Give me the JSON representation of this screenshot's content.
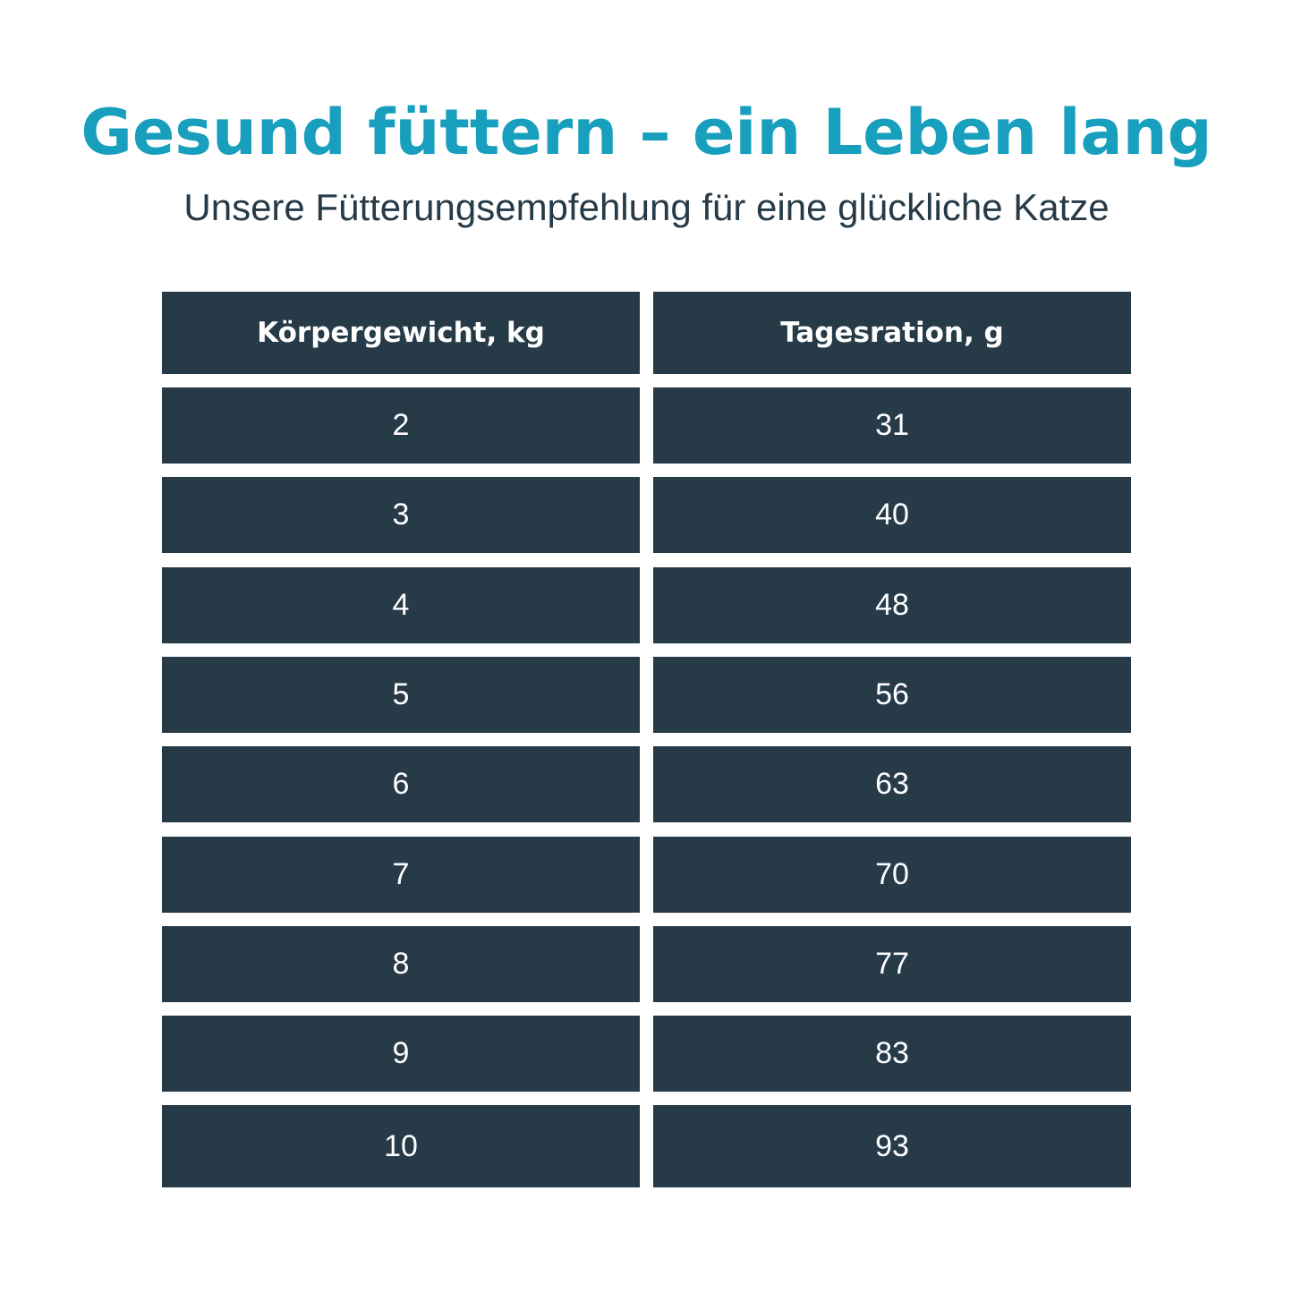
{
  "title": "Gesund füttern – ein Leben lang",
  "subtitle": "Unsere Fütterungsempfehlung für eine glückliche Katze",
  "colors": {
    "title": "#179fbd",
    "table_bg": "#263a48",
    "table_text": "#ffffff",
    "subtitle": "#263a48"
  },
  "table": {
    "headers": [
      "Körpergewicht, kg",
      "Tagesration, g"
    ],
    "rows": [
      [
        "2",
        "31"
      ],
      [
        "3",
        "40"
      ],
      [
        "4",
        "48"
      ],
      [
        "5",
        "56"
      ],
      [
        "6",
        "63"
      ],
      [
        "7",
        "70"
      ],
      [
        "8",
        "77"
      ],
      [
        "9",
        "83"
      ],
      [
        "10",
        "93"
      ]
    ]
  }
}
